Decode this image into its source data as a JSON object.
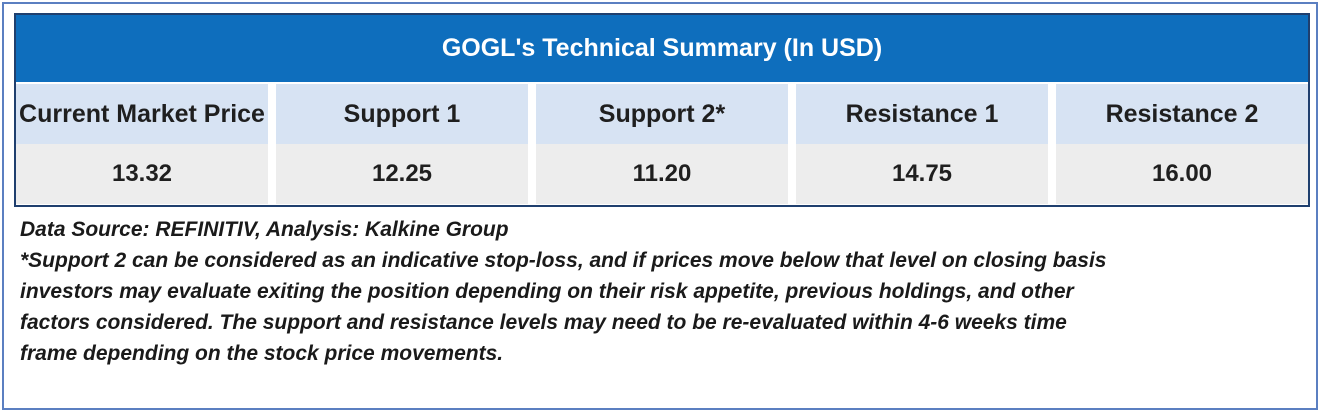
{
  "table": {
    "title": "GOGL's Technical Summary (In USD)",
    "headers": [
      "Current Market Price",
      "Support 1",
      "Support 2*",
      "Resistance 1",
      "Resistance 2"
    ],
    "values": [
      "13.32",
      "12.25",
      "11.20",
      "14.75",
      "16.00"
    ]
  },
  "notes": {
    "source": "Data Source: REFINITIV, Analysis: Kalkine Group",
    "disclaimer_lines": [
      "*Support 2 can be considered as an indicative stop-loss, and if prices move below that level on closing basis",
      "investors may evaluate exiting the position depending on their risk appetite, previous holdings, and other",
      "factors considered. The support and resistance levels may need to be re-evaluated within 4-6 weeks time",
      "frame depending on the stock price movements."
    ]
  },
  "colors": {
    "title_bg": "#0e6ebd",
    "header_bg": "#d7e3f3",
    "value_bg": "#ededed",
    "frame_border": "#5b7fc1"
  }
}
